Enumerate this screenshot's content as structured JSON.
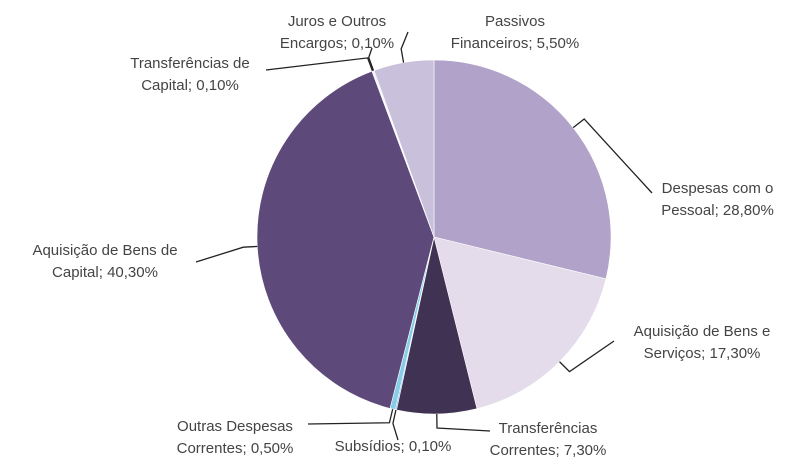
{
  "chart_data": {
    "type": "pie",
    "categories": [
      "Despesas com o Pessoal",
      "Aquisição de Bens e Serviços",
      "Transferências Correntes",
      "Subsídios",
      "Outras Despesas Correntes",
      "Aquisição de Bens de Capital",
      "Transferências de Capital",
      "Juros e Outros Encargos",
      "Passivos Financeiros"
    ],
    "values": [
      28.8,
      17.3,
      7.3,
      0.1,
      0.5,
      40.3,
      0.1,
      0.1,
      5.5
    ],
    "value_labels": [
      "28,80%",
      "17,30%",
      "7,30%",
      "0,10%",
      "0,50%",
      "40,30%",
      "0,10%",
      "0,10%",
      "5,50%"
    ],
    "colors": [
      "#b0a2c8",
      "#e4dcea",
      "#3f3252",
      "#5b9bd5",
      "#86cde8",
      "#5e4a7a",
      "#f4f2f7",
      "#dcd6e6",
      "#c9c0dc"
    ]
  }
}
